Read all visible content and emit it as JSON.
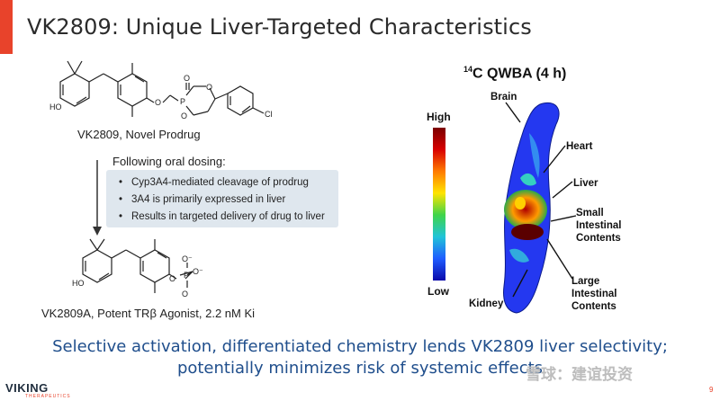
{
  "slide": {
    "title": "VK2809: Unique Liver-Targeted Characteristics",
    "accent_color": "#e8432b",
    "page_number": "9"
  },
  "left": {
    "prodrug_label": "VK2809, Novel Prodrug",
    "dosing_heading": "Following oral dosing:",
    "bullets": [
      "Cyp3A4-mediated cleavage of prodrug",
      "3A4 is primarily expressed in liver",
      "Results in targeted delivery of drug to liver"
    ],
    "active_label": "VK2809A, Potent TRβ Agonist, 2.2 nM Ki",
    "mol_atoms": {
      "ho": "HO",
      "o": "O",
      "p": "P",
      "cl": "Cl",
      "o_minus": "O⁻"
    }
  },
  "right": {
    "qwba_iso": "14",
    "qwba_title": "C QWBA (4 h)",
    "scale_high": "High",
    "scale_low": "Low",
    "organs": {
      "brain": "Brain",
      "heart": "Heart",
      "liver": "Liver",
      "small_1": "Small",
      "small_2": "Intestinal",
      "small_3": "Contents",
      "kidney": "Kidney",
      "large_1": "Large",
      "large_2": "Intestinal",
      "large_3": "Contents"
    }
  },
  "footer": {
    "line1": "Selective activation, differentiated chemistry lends VK2809 liver selectivity;",
    "line2": "potentially minimizes risk of systemic effects"
  },
  "branding": {
    "logo": "VIKING",
    "logo_sub": "THERAPEUTICS",
    "watermark": "雪球：建谊投资"
  }
}
